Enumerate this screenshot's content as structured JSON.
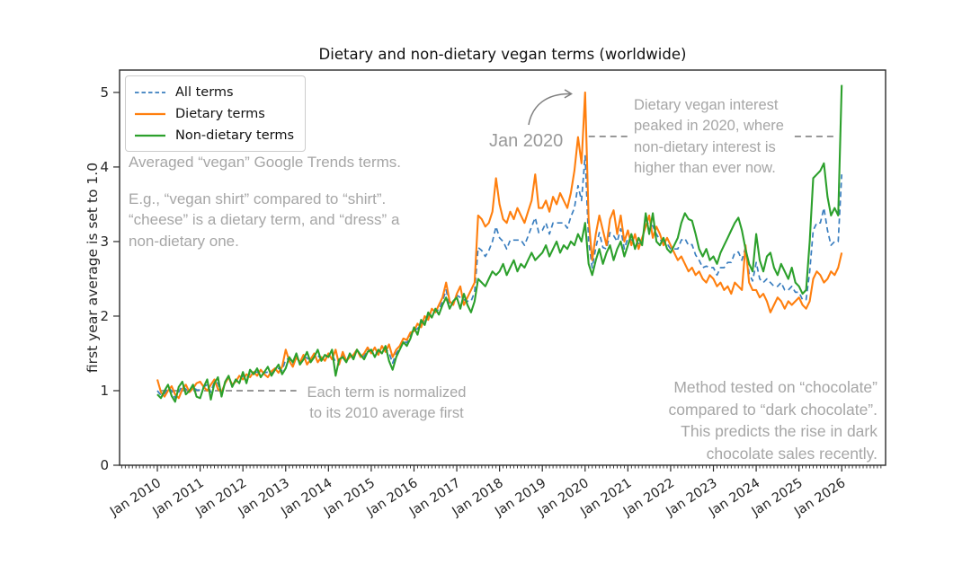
{
  "figure": {
    "title": "Dietary and non-dietary vegan terms (worldwide)",
    "ylabel": "first year average is set to 1.0",
    "annotations": {
      "averaged": "Averaged “vegan” Google Trends terms.",
      "example": "E.g., “vegan shirt” compared to “shirt”.\n“cheese” is a dietary term, and “dress” a\nnon-dietary one.",
      "normalized": "Each term is normalized\nto its 2010 average first",
      "jan_2020": "Jan 2020",
      "peak_2020": "Dietary vegan interest\npeaked in 2020, where\nnon-dietary interest is\nhigher than ever now.",
      "chocolate": "Method tested on “chocolate”\ncompared to “dark chocolate”.\nThis predicts the rise in dark\nchocolate sales recently."
    },
    "annotation_color": "#a6a6a6",
    "arrow_color": "#7f7f7f",
    "ref_line_color": "#8a8a8a",
    "spine_color": "#2b2b2b"
  },
  "chart_data": {
    "type": "line",
    "title": "Dietary and non-dietary vegan terms (worldwide)",
    "xlabel": "",
    "ylabel": "first year average is set to 1.0",
    "x_unit": "month",
    "x_start": "Jan 2010",
    "x_end": "Jan 2026",
    "x_ticklabels": [
      "Jan 2010",
      "Jan 2011",
      "Jan 2012",
      "Jan 2013",
      "Jan 2014",
      "Jan 2015",
      "Jan 2016",
      "Jan 2017",
      "Jan 2018",
      "Jan 2019",
      "Jan 2020",
      "Jan 2021",
      "Jan 2022",
      "Jan 2023",
      "Jan 2024",
      "Jan 2025",
      "Jan 2026"
    ],
    "y_ticks": [
      0,
      1,
      2,
      3,
      4,
      5
    ],
    "ylim": [
      0,
      5.3
    ],
    "legend_position": "upper left",
    "grid": false,
    "series": [
      {
        "name": "All terms",
        "color": "#3a7ebf",
        "style": "dashed",
        "values": [
          1.0,
          0.94,
          0.96,
          1.04,
          1.0,
          0.9,
          0.98,
          1.07,
          1.02,
          0.99,
          1.06,
          1.01,
          1.01,
          1.05,
          1.08,
          0.98,
          1.12,
          1.1,
          0.95,
          1.11,
          1.19,
          1.07,
          1.13,
          1.15,
          1.2,
          1.16,
          1.23,
          1.24,
          1.25,
          1.23,
          1.24,
          1.25,
          1.23,
          1.29,
          1.3,
          1.27,
          1.42,
          1.43,
          1.35,
          1.47,
          1.36,
          1.45,
          1.44,
          1.4,
          1.47,
          1.47,
          1.43,
          1.44,
          1.47,
          1.49,
          1.38,
          1.39,
          1.48,
          1.39,
          1.47,
          1.45,
          1.55,
          1.47,
          1.46,
          1.55,
          1.52,
          1.52,
          1.51,
          1.55,
          1.56,
          1.51,
          1.37,
          1.5,
          1.57,
          1.67,
          1.64,
          1.74,
          1.82,
          1.83,
          1.9,
          1.94,
          2.0,
          2.04,
          2.08,
          2.08,
          2.2,
          2.35,
          2.15,
          2.18,
          2.28,
          2.25,
          2.22,
          2.2,
          2.2,
          2.32,
          2.92,
          2.88,
          2.8,
          2.88,
          3.0,
          3.2,
          3.05,
          3.0,
          2.9,
          3.02,
          3.02,
          3.02,
          3.02,
          2.95,
          3.07,
          3.2,
          3.32,
          3.12,
          3.15,
          3.25,
          3.1,
          3.25,
          3.25,
          3.25,
          3.25,
          3.18,
          3.33,
          3.45,
          3.75,
          3.55,
          4.15,
          3.0,
          2.65,
          2.92,
          3.12,
          2.92,
          2.9,
          3.12,
          3.08,
          3.0,
          3.17,
          2.9,
          3.05,
          3.02,
          3.0,
          2.97,
          3.0,
          3.29,
          3.22,
          3.21,
          3.1,
          3.02,
          3.0,
          2.97,
          2.9,
          2.9,
          2.9,
          3.02,
          3.04,
          2.95,
          2.96,
          2.82,
          2.75,
          2.65,
          2.67,
          2.65,
          2.65,
          2.55,
          2.65,
          2.65,
          2.72,
          2.72,
          2.85,
          2.86,
          2.75,
          2.92,
          2.57,
          2.47,
          2.72,
          2.5,
          2.45,
          2.5,
          2.45,
          2.4,
          2.4,
          2.45,
          2.35,
          2.35,
          2.4,
          2.32,
          2.32,
          2.22,
          2.22,
          2.6,
          3.15,
          3.25,
          3.25,
          3.45,
          3.15,
          2.95,
          3.0,
          3.0,
          3.9
        ]
      },
      {
        "name": "Dietary terms",
        "color": "#ff7f0e",
        "style": "solid",
        "values": [
          1.15,
          0.98,
          0.92,
          1.0,
          1.06,
          0.95,
          0.9,
          1.02,
          1.08,
          0.98,
          1.03,
          1.1,
          1.12,
          1.05,
          1.0,
          1.08,
          1.15,
          1.02,
          0.98,
          1.1,
          1.18,
          1.08,
          1.12,
          1.2,
          1.15,
          1.22,
          1.18,
          1.25,
          1.2,
          1.28,
          1.22,
          1.18,
          1.26,
          1.3,
          1.24,
          1.32,
          1.55,
          1.4,
          1.32,
          1.45,
          1.38,
          1.48,
          1.35,
          1.42,
          1.5,
          1.38,
          1.45,
          1.4,
          1.5,
          1.42,
          1.55,
          1.35,
          1.52,
          1.4,
          1.45,
          1.48,
          1.55,
          1.45,
          1.5,
          1.58,
          1.5,
          1.58,
          1.48,
          1.6,
          1.52,
          1.62,
          1.45,
          1.55,
          1.6,
          1.7,
          1.68,
          1.78,
          1.8,
          1.9,
          1.85,
          2.0,
          1.95,
          2.1,
          2.05,
          2.15,
          2.25,
          2.45,
          2.2,
          2.15,
          2.3,
          2.4,
          2.15,
          2.25,
          2.35,
          2.45,
          3.35,
          3.3,
          3.2,
          3.25,
          3.4,
          3.85,
          3.5,
          3.3,
          3.25,
          3.4,
          3.3,
          3.45,
          3.35,
          3.25,
          3.4,
          3.55,
          3.9,
          3.45,
          3.45,
          3.55,
          3.4,
          3.6,
          3.5,
          3.65,
          3.55,
          3.45,
          3.65,
          3.95,
          4.4,
          4.05,
          5.0,
          3.3,
          2.75,
          3.1,
          3.35,
          3.15,
          2.95,
          3.3,
          3.42,
          3.1,
          3.35,
          3.0,
          3.15,
          2.95,
          3.1,
          2.9,
          3.05,
          3.2,
          3.35,
          3.05,
          3.2,
          3.1,
          2.95,
          3.05,
          2.95,
          2.85,
          2.75,
          2.8,
          2.7,
          2.6,
          2.65,
          2.55,
          2.6,
          2.5,
          2.45,
          2.55,
          2.5,
          2.4,
          2.45,
          2.35,
          2.4,
          2.3,
          2.45,
          2.4,
          2.35,
          2.95,
          2.45,
          2.35,
          2.35,
          2.25,
          2.3,
          2.2,
          2.05,
          2.15,
          2.25,
          2.2,
          2.1,
          2.2,
          2.15,
          2.2,
          2.25,
          2.15,
          2.1,
          2.2,
          2.5,
          2.6,
          2.55,
          2.45,
          2.5,
          2.6,
          2.55,
          2.65,
          2.85
        ]
      },
      {
        "name": "Non-dietary terms",
        "color": "#2ca02c",
        "style": "solid",
        "values": [
          0.95,
          0.9,
          1.0,
          1.08,
          0.93,
          0.85,
          1.05,
          1.12,
          0.95,
          1.0,
          1.08,
          0.92,
          0.9,
          1.05,
          1.15,
          0.88,
          1.1,
          1.18,
          0.92,
          1.12,
          1.2,
          1.05,
          1.15,
          1.1,
          1.25,
          1.1,
          1.28,
          1.22,
          1.3,
          1.18,
          1.25,
          1.32,
          1.2,
          1.28,
          1.35,
          1.22,
          1.3,
          1.45,
          1.38,
          1.5,
          1.35,
          1.42,
          1.52,
          1.38,
          1.45,
          1.55,
          1.4,
          1.48,
          1.45,
          1.55,
          1.2,
          1.42,
          1.45,
          1.38,
          1.5,
          1.42,
          1.55,
          1.48,
          1.42,
          1.52,
          1.55,
          1.45,
          1.55,
          1.5,
          1.6,
          1.4,
          1.28,
          1.45,
          1.55,
          1.65,
          1.6,
          1.7,
          1.85,
          1.75,
          1.95,
          1.88,
          2.05,
          1.98,
          2.1,
          2.02,
          2.15,
          2.25,
          2.1,
          2.2,
          2.25,
          2.1,
          2.3,
          2.15,
          2.05,
          2.2,
          2.5,
          2.45,
          2.4,
          2.5,
          2.6,
          2.55,
          2.6,
          2.7,
          2.55,
          2.65,
          2.75,
          2.6,
          2.7,
          2.65,
          2.75,
          2.85,
          2.75,
          2.8,
          2.85,
          2.95,
          2.8,
          2.9,
          3.0,
          2.85,
          2.95,
          2.9,
          3.0,
          2.95,
          3.1,
          3.0,
          3.25,
          2.7,
          2.55,
          2.75,
          2.9,
          2.7,
          2.85,
          2.95,
          2.75,
          2.9,
          3.0,
          2.8,
          2.95,
          3.1,
          2.9,
          3.05,
          2.95,
          3.38,
          3.1,
          3.38,
          3.0,
          2.95,
          3.05,
          2.9,
          2.85,
          2.95,
          3.05,
          3.25,
          3.38,
          3.3,
          3.28,
          3.1,
          2.9,
          2.8,
          2.9,
          2.75,
          2.8,
          2.7,
          2.85,
          2.95,
          3.05,
          3.15,
          3.25,
          3.32,
          3.15,
          2.9,
          2.7,
          2.6,
          3.1,
          2.75,
          2.6,
          2.8,
          2.85,
          2.65,
          2.55,
          2.7,
          2.6,
          2.5,
          2.65,
          2.45,
          2.4,
          2.3,
          2.35,
          3.0,
          3.85,
          3.9,
          3.95,
          4.05,
          3.6,
          3.35,
          3.45,
          3.35,
          5.1
        ]
      }
    ],
    "ref_lines": [
      {
        "y": 1.0,
        "from_month": 1,
        "to_month": 39
      },
      {
        "y": 4.41,
        "from_month": 121,
        "to_month": 132.4
      },
      {
        "y": 4.41,
        "from_month": 178.8,
        "to_month": 190.4
      }
    ]
  }
}
